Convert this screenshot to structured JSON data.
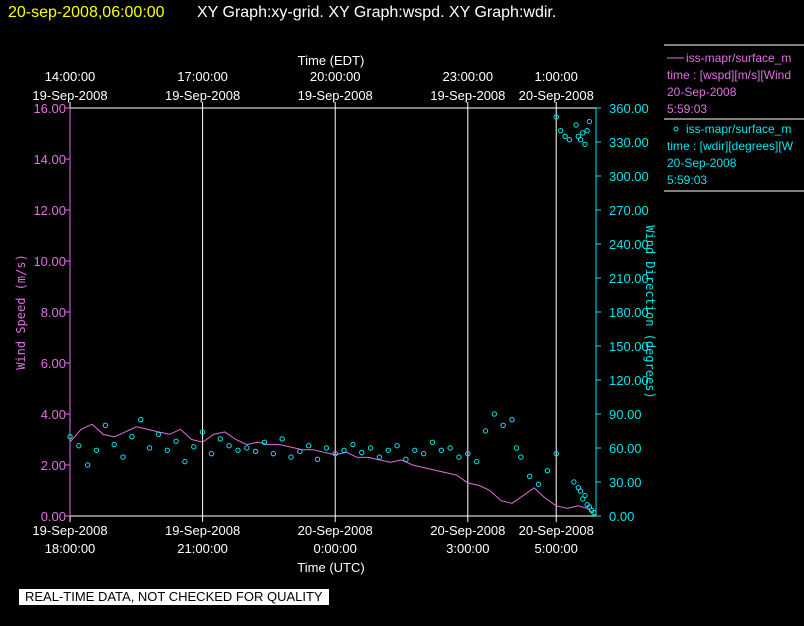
{
  "header": {
    "timestamp": "20-sep-2008,06:00:00",
    "graphs": "XY Graph:xy-grid.  XY Graph:wspd.  XY Graph:wdir."
  },
  "colors": {
    "speed": "#e070e0",
    "direction": "#00e5ee",
    "header_time": "#ffff00",
    "grid": "#ffffff"
  },
  "legend": {
    "speed": {
      "line1": "iss-mapr/surface_m",
      "line2": "time : [wspd][m/s][Wind",
      "line3": "20-Sep-2008",
      "line4": "5:59:03"
    },
    "direction": {
      "line1": "iss-mapr/surface_m",
      "line2": "time : [wdir][degrees][W",
      "line3": "20-Sep-2008",
      "line4": "5:59:03"
    }
  },
  "banner": "REAL-TIME DATA, NOT CHECKED FOR QUALITY",
  "chart_data": {
    "type": "line",
    "x_units": "hours since 19-Sep-2008 18:00 UTC",
    "xlim": [
      0,
      11.9
    ],
    "top_axis": {
      "title": "Time (EDT)",
      "ticks": [
        {
          "x": 0,
          "time": "14:00:00",
          "date": "19-Sep-2008"
        },
        {
          "x": 3,
          "time": "17:00:00",
          "date": "19-Sep-2008"
        },
        {
          "x": 6,
          "time": "20:00:00",
          "date": "19-Sep-2008"
        },
        {
          "x": 9,
          "time": "23:00:00",
          "date": "19-Sep-2008"
        },
        {
          "x": 11,
          "time": "1:00:00",
          "date": "20-Sep-2008"
        }
      ]
    },
    "bottom_axis": {
      "title": "Time (UTC)",
      "ticks": [
        {
          "x": 0,
          "date": "19-Sep-2008",
          "time": "18:00:00"
        },
        {
          "x": 3,
          "date": "19-Sep-2008",
          "time": "21:00:00"
        },
        {
          "x": 6,
          "date": "20-Sep-2008",
          "time": "0:00:00"
        },
        {
          "x": 9,
          "date": "20-Sep-2008",
          "time": "3:00:00"
        },
        {
          "x": 11,
          "date": "20-Sep-2008",
          "time": "5:00:00"
        }
      ]
    },
    "y_left": {
      "label": "Wind Speed (m/s)",
      "ylim": [
        0,
        16
      ],
      "ticks": [
        "0.00",
        "2.00",
        "4.00",
        "6.00",
        "8.00",
        "10.00",
        "12.00",
        "14.00",
        "16.00"
      ]
    },
    "y_right": {
      "label": "Wind Direction (degrees)",
      "ylim": [
        0,
        360
      ],
      "ticks": [
        "0.00",
        "30.00",
        "60.00",
        "90.00",
        "120.00",
        "150.00",
        "180.00",
        "210.00",
        "240.00",
        "270.00",
        "300.00",
        "330.00",
        "360.00"
      ]
    },
    "series": [
      {
        "name": "wspd",
        "style": "line",
        "x": [
          0,
          0.25,
          0.5,
          0.75,
          1,
          1.25,
          1.5,
          1.75,
          2,
          2.25,
          2.5,
          2.75,
          3,
          3.25,
          3.5,
          3.75,
          4,
          4.25,
          4.5,
          4.75,
          5,
          5.25,
          5.5,
          5.75,
          6,
          6.25,
          6.5,
          6.75,
          7,
          7.25,
          7.5,
          7.75,
          8,
          8.25,
          8.5,
          8.75,
          9,
          9.25,
          9.5,
          9.75,
          10,
          10.25,
          10.5,
          10.75,
          11,
          11.25,
          11.5,
          11.7,
          11.85
        ],
        "y": [
          2.9,
          3.4,
          3.6,
          3.2,
          3.1,
          3.3,
          3.5,
          3.4,
          3.3,
          3.2,
          3.4,
          3.0,
          2.9,
          3.2,
          3.3,
          3.0,
          2.8,
          2.9,
          2.8,
          2.8,
          2.7,
          2.6,
          2.6,
          2.5,
          2.4,
          2.5,
          2.3,
          2.3,
          2.2,
          2.1,
          2.2,
          2.0,
          1.9,
          1.8,
          1.7,
          1.6,
          1.3,
          1.2,
          1.0,
          0.6,
          0.5,
          0.8,
          1.1,
          0.7,
          0.4,
          0.3,
          0.4,
          0.3,
          0.1
        ]
      },
      {
        "name": "wdir",
        "style": "circles",
        "x": [
          0,
          0.2,
          0.4,
          0.6,
          0.8,
          1.0,
          1.2,
          1.4,
          1.6,
          1.8,
          2.0,
          2.2,
          2.4,
          2.6,
          2.8,
          3.0,
          3.2,
          3.4,
          3.6,
          3.8,
          4.0,
          4.2,
          4.4,
          4.6,
          4.8,
          5.0,
          5.2,
          5.4,
          5.6,
          5.8,
          6.0,
          6.2,
          6.4,
          6.6,
          6.8,
          7.0,
          7.2,
          7.4,
          7.6,
          7.8,
          8.0,
          8.2,
          8.4,
          8.6,
          8.8,
          9.0,
          9.2,
          9.4,
          9.6,
          9.8,
          10.0,
          10.1,
          10.2,
          10.4,
          10.6,
          10.8,
          11.0,
          11.1,
          11.2,
          11.3,
          11.4,
          11.5,
          11.55,
          11.6,
          11.65,
          11.7,
          11.75,
          11.8,
          11.85
        ],
        "y": [
          70,
          62,
          45,
          58,
          80,
          63,
          52,
          70,
          85,
          60,
          72,
          58,
          66,
          48,
          61,
          74,
          55,
          68,
          62,
          58,
          60,
          57,
          65,
          55,
          68,
          52,
          57,
          62,
          50,
          60,
          55,
          58,
          63,
          56,
          60,
          52,
          58,
          62,
          50,
          58,
          55,
          65,
          58,
          60,
          52,
          55,
          48,
          75,
          90,
          80,
          85,
          60,
          52,
          35,
          28,
          40,
          55,
          340,
          335,
          332,
          30,
          25,
          22,
          15,
          18,
          10,
          8,
          5,
          3
        ]
      },
      {
        "name": "wdir-cluster",
        "style": "circles",
        "x": [
          11.0,
          11.45,
          11.5,
          11.55,
          11.6,
          11.65,
          11.7,
          11.75
        ],
        "y": [
          352,
          345,
          335,
          332,
          338,
          328,
          340,
          348
        ]
      }
    ]
  }
}
